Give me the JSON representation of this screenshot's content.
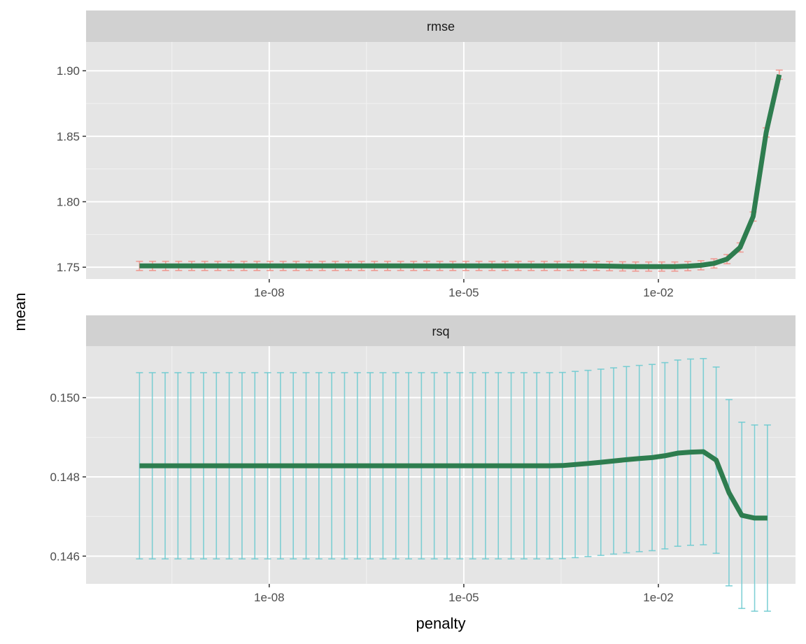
{
  "chart_data": {
    "type": "line",
    "facet_variable": "metric",
    "xlabel": "penalty",
    "ylabel": "mean",
    "x_scale": "log10",
    "x_tick_labels": [
      "1e-08",
      "1e-05",
      "1e-02"
    ],
    "x_tick_values": [
      1e-08,
      1e-05,
      0.01
    ],
    "xlim": [
      1.5e-11,
      1.3
    ],
    "grid": true,
    "colors": {
      "line": "#2e7d4f",
      "rmse_errorbar": "#f08f86",
      "rsq_errorbar": "#6ccad0",
      "panel_background": "#e5e5e5",
      "strip_background": "#d1d1d1",
      "grid_major": "#ffffff"
    },
    "panels": [
      {
        "strip_label": "rmse",
        "ylim": [
          1.741,
          1.922
        ],
        "y_ticks": [
          1.75,
          1.8,
          1.85,
          1.9
        ],
        "y_tick_labels": [
          "1.75",
          "1.80",
          "1.85",
          "1.90"
        ],
        "line_x_max": 0.73,
        "points": [
          {
            "penalty": 1e-10,
            "mean": 1.751,
            "err": 0.0035
          },
          {
            "penalty": 0.0003,
            "mean": 1.751,
            "err": 0.0035
          },
          {
            "penalty": 0.001,
            "mean": 1.751,
            "err": 0.0035
          },
          {
            "penalty": 0.004,
            "mean": 1.7505,
            "err": 0.0035
          },
          {
            "penalty": 0.01,
            "mean": 1.7505,
            "err": 0.0035
          },
          {
            "penalty": 0.02,
            "mean": 1.7505,
            "err": 0.0035
          },
          {
            "penalty": 0.035,
            "mean": 1.751,
            "err": 0.0035
          },
          {
            "penalty": 0.06,
            "mean": 1.752,
            "err": 0.0035
          },
          {
            "penalty": 0.09,
            "mean": 1.754,
            "err": 0.0035
          },
          {
            "penalty": 0.14,
            "mean": 1.758,
            "err": 0.0035
          },
          {
            "penalty": 0.21,
            "mean": 1.769,
            "err": 0.0035
          },
          {
            "penalty": 0.32,
            "mean": 1.795,
            "err": 0.0035
          },
          {
            "penalty": 0.48,
            "mean": 1.86,
            "err": 0.0035
          },
          {
            "penalty": 0.73,
            "mean": 1.897,
            "err": 0.0035
          }
        ]
      },
      {
        "strip_label": "rsq",
        "ylim": [
          0.1453,
          0.1513
        ],
        "y_ticks": [
          0.146,
          0.148,
          0.15
        ],
        "y_tick_labels": [
          "0.146",
          "0.148",
          "0.150"
        ],
        "line_x_max": 0.48,
        "points": [
          {
            "penalty": 1e-10,
            "mean": 0.14828,
            "err": 0.00235
          },
          {
            "penalty": 0.0003,
            "mean": 0.14828,
            "err": 0.00235
          },
          {
            "penalty": 0.001,
            "mean": 0.14835,
            "err": 0.00235
          },
          {
            "penalty": 0.004,
            "mean": 0.14845,
            "err": 0.00235
          },
          {
            "penalty": 0.01,
            "mean": 0.1485,
            "err": 0.00235
          },
          {
            "penalty": 0.02,
            "mean": 0.1486,
            "err": 0.00235
          },
          {
            "penalty": 0.035,
            "mean": 0.14863,
            "err": 0.00235
          },
          {
            "penalty": 0.06,
            "mean": 0.14864,
            "err": 0.00235
          },
          {
            "penalty": 0.09,
            "mean": 0.1483,
            "err": 0.00235
          },
          {
            "penalty": 0.14,
            "mean": 0.1473,
            "err": 0.00235
          },
          {
            "penalty": 0.21,
            "mean": 0.14696,
            "err": 0.00235
          },
          {
            "penalty": 0.48,
            "mean": 0.14696,
            "err": 0.00235
          }
        ]
      }
    ]
  }
}
